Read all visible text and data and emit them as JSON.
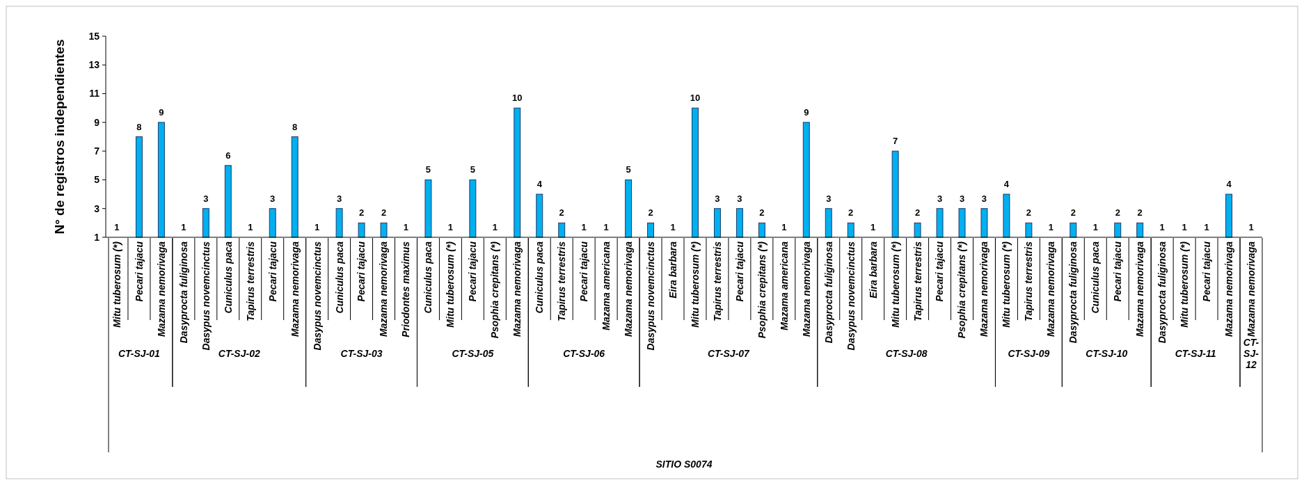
{
  "chart_data": [
    {
      "type": "bar",
      "ylabel": "N° de registros independientes",
      "xlabel": "CT-SJ-01",
      "annotations": [
        "SITIO S0074"
      ],
      "categories": [
        "Mitu tuberosum (*)",
        "Pecari tajacu",
        "Mazama nemorivaga"
      ],
      "values": [
        1,
        8,
        9
      ],
      "color": "#00b0f0",
      "ylim": [
        1,
        15
      ],
      "yticks": [
        1,
        3,
        5,
        7,
        9,
        11,
        13,
        15
      ],
      "data_labels": true
    },
    {
      "type": "bar",
      "xlabel": "CT-SJ-02",
      "categories": [
        "Dasyprocta fuliginosa",
        "Dasypus novemcinctus",
        "Cuniculus paca",
        "Tapirus terrestris",
        "Pecari tajacu",
        "Mazama nemorivaga"
      ],
      "values": [
        1,
        3,
        6,
        1,
        3,
        8
      ],
      "color": "#00b0f0",
      "ylim": [
        1,
        15
      ],
      "yticks": [
        1,
        3,
        5,
        7,
        9,
        11,
        13,
        15
      ],
      "data_labels": true,
      "tick_labels": "x"
    },
    {
      "type": "bar",
      "xlabel": "CT-SJ-03",
      "categories": [
        "Dasypus novemcinctus",
        "Cuniculus paca",
        "Pecari tajacu",
        "Mazama nemorivaga",
        "Priodontes maximus"
      ],
      "values": [
        1,
        3,
        2,
        2,
        1
      ],
      "color": "#00b0f0",
      "ylim": [
        1,
        15
      ],
      "yticks": [
        1,
        3,
        5,
        7,
        9,
        11,
        13,
        15
      ],
      "data_labels": true,
      "tick_labels": "x"
    },
    {
      "type": "bar",
      "xlabel": "CT-SJ-05",
      "categories": [
        "Cuniculus paca",
        "Mitu tuberosum (*)",
        "Pecari tajacu",
        "Psophia crepitans (*)",
        "Mazama nemorivaga"
      ],
      "values": [
        5,
        1,
        5,
        1,
        10
      ],
      "color": "#00b0f0",
      "ylim": [
        1,
        15
      ],
      "yticks": [
        1,
        3,
        5,
        7,
        9,
        11,
        13,
        15
      ],
      "data_labels": true,
      "tick_labels": "x"
    },
    {
      "type": "bar",
      "xlabel": "CT-SJ-06",
      "categories": [
        "Cuniculus paca",
        "Tapirus terrestris",
        "Pecari tajacu",
        "Mazama americana",
        "Mazama nemorivaga"
      ],
      "values": [
        4,
        2,
        1,
        1,
        5
      ],
      "color": "#00b0f0",
      "ylim": [
        1,
        15
      ],
      "yticks": [
        1,
        3,
        5,
        7,
        9,
        11,
        13,
        15
      ],
      "data_labels": true,
      "tick_labels": "x"
    },
    {
      "type": "bar",
      "xlabel": "CT-SJ-07",
      "categories": [
        "Dasypus novemcinctus",
        "Eira barbara",
        "Mitu tuberosum (*)",
        "Tapirus terrestris",
        "Pecari tajacu",
        "Psophia crepitans (*)",
        "Mazama americana",
        "Mazama nemorivaga"
      ],
      "values": [
        2,
        1,
        10,
        3,
        3,
        2,
        1,
        9
      ],
      "color": "#00b0f0",
      "ylim": [
        1,
        15
      ],
      "yticks": [
        1,
        3,
        5,
        7,
        9,
        11,
        13,
        15
      ],
      "data_labels": true,
      "tick_labels": "x"
    },
    {
      "type": "bar",
      "xlabel": "CT-SJ-08",
      "categories": [
        "Dasyprocta fuliginosa",
        "Dasypus novemcinctus",
        "Eira barbara",
        "Mitu tuberosum (*)",
        "Tapirus terrestris",
        "Pecari tajacu",
        "Psophia crepitans (*)",
        "Mazama nemorivaga"
      ],
      "values": [
        3,
        2,
        1,
        7,
        2,
        3,
        3,
        3
      ],
      "color": "#00b0f0",
      "ylim": [
        1,
        15
      ],
      "yticks": [
        1,
        3,
        5,
        7,
        9,
        11,
        13,
        15
      ],
      "data_labels": true,
      "tick_labels": "x"
    },
    {
      "type": "bar",
      "xlabel": "CT-SJ-09",
      "categories": [
        "Mitu tuberosum (*)",
        "Tapirus terrestris",
        "Mazama nemorivaga"
      ],
      "values": [
        4,
        2,
        1
      ],
      "color": "#00b0f0",
      "ylim": [
        1,
        15
      ],
      "yticks": [
        1,
        3,
        5,
        7,
        9,
        11,
        13,
        15
      ],
      "data_labels": true,
      "tick_labels": "x"
    },
    {
      "type": "bar",
      "xlabel": "CT-SJ-10",
      "categories": [
        "Dasyprocta fuliginosa",
        "Cuniculus paca",
        "Pecari tajacu",
        "Mazama nemorivaga"
      ],
      "values": [
        2,
        1,
        2,
        2
      ],
      "color": "#00b0f0",
      "ylim": [
        1,
        15
      ],
      "yticks": [
        1,
        3,
        5,
        7,
        9,
        11,
        13,
        15
      ],
      "data_labels": true,
      "tick_labels": "x"
    },
    {
      "type": "bar",
      "xlabel": "CT-SJ-11",
      "categories": [
        "Dasyprocta fuliginosa",
        "Mitu tuberosum (*)",
        "Pecari tajacu",
        "Mazama nemorivaga"
      ],
      "values": [
        1,
        1,
        1,
        4
      ],
      "color": "#00b0f0",
      "ylim": [
        1,
        15
      ],
      "yticks": [
        1,
        3,
        5,
        7,
        9,
        11,
        13,
        15
      ],
      "data_labels": true,
      "tick_labels": "x"
    },
    {
      "type": "bar",
      "xlabel": "CT-SJ-12",
      "categories": [
        "Mazama nemorivaga"
      ],
      "values": [
        1
      ],
      "color": "#00b0f0",
      "ylim": [
        1,
        15
      ],
      "yticks": [
        1,
        3,
        5,
        7,
        9,
        11,
        13,
        15
      ],
      "data_labels": true,
      "tick_labels": "x"
    }
  ]
}
